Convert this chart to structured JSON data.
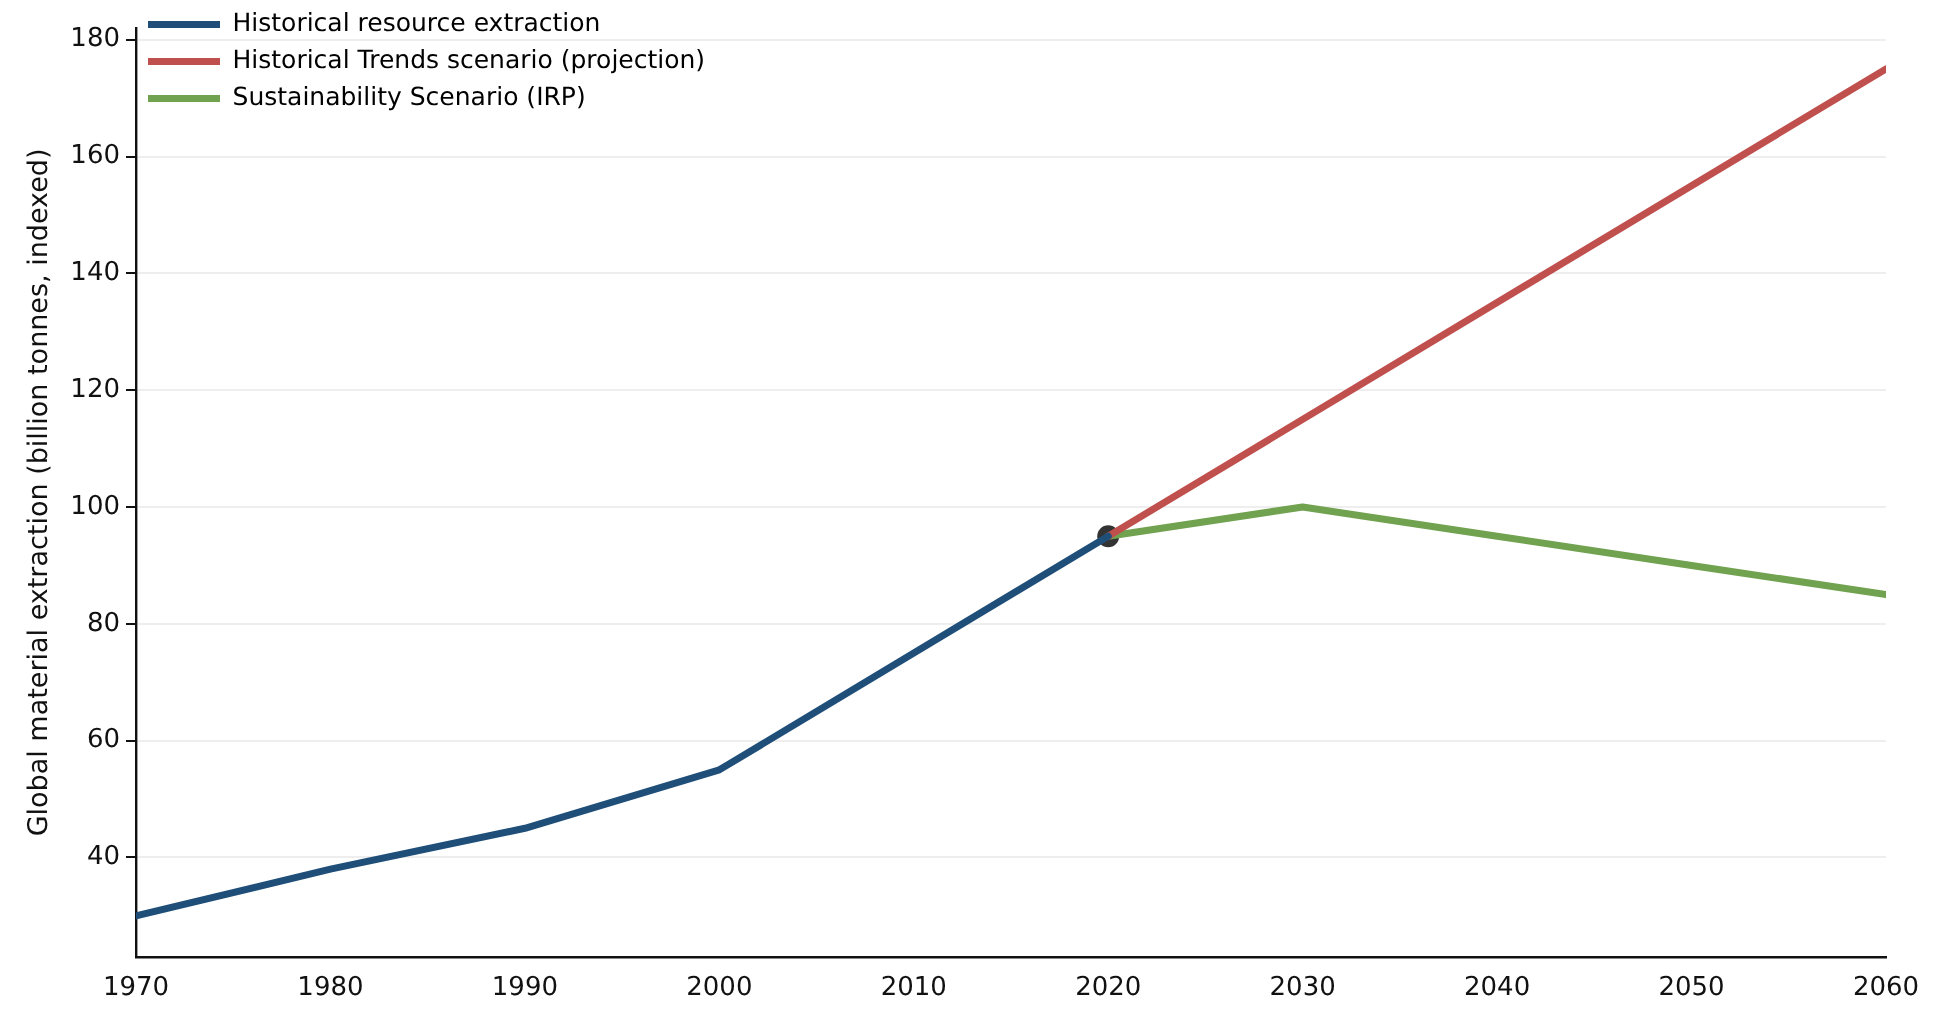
{
  "chart_data": {
    "type": "line",
    "ylabel": "Global material extraction (billion tonnes, indexed)",
    "xlim": [
      1970,
      2060
    ],
    "xticks": [
      1970,
      1980,
      1990,
      2000,
      2010,
      2020,
      2030,
      2040,
      2050,
      2060
    ],
    "ylim": [
      23,
      182
    ],
    "yticks": [
      40,
      60,
      80,
      100,
      120,
      140,
      160,
      180
    ],
    "grid": "y",
    "legend": "top left",
    "marker": "none",
    "line_style": "solid",
    "series": [
      {
        "name": "Historical resource extraction",
        "color": "#1f4e79",
        "x": [
          1970,
          1980,
          1990,
          2000,
          2010,
          2020
        ],
        "values": [
          30,
          38,
          45,
          55,
          75,
          95
        ]
      },
      {
        "name": "Historical Trends scenario (projection)",
        "color": "#c0504d",
        "x": [
          2020,
          2060
        ],
        "values": [
          95,
          175
        ]
      },
      {
        "name": "Sustainability Scenario (IRP)",
        "color": "#70a24f",
        "x": [
          2020,
          2030,
          2040,
          2050,
          2060
        ],
        "values": [
          95,
          100,
          95,
          90,
          85
        ]
      },
      {
        "type": "scatter",
        "color": "#333333",
        "marker": "circle",
        "x": [
          2020
        ],
        "values": [
          95
        ]
      }
    ]
  }
}
